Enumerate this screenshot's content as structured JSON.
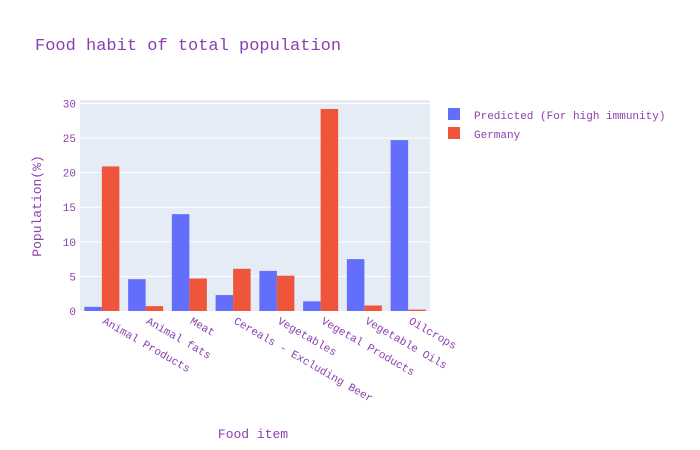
{
  "chart_data": {
    "type": "bar",
    "title": "Food habit of total population",
    "xlabel": "Food item",
    "ylabel": "Population(%)",
    "ylim": [
      0,
      30.5
    ],
    "yticks": [
      0,
      5,
      10,
      15,
      20,
      25,
      30
    ],
    "grid": true,
    "legend_position": "top-right",
    "categories": [
      "Animal Products",
      "Animal fats",
      "Meat",
      "Cereals - Excluding Beer",
      "Vegetables",
      "Vegetal Products",
      "Vegetable Oils",
      "Oilcrops"
    ],
    "series": [
      {
        "name": "Predicted (For high immunity)",
        "color": "#636efa",
        "values": [
          0.6,
          4.6,
          14.0,
          2.3,
          5.8,
          1.4,
          7.5,
          24.7
        ]
      },
      {
        "name": "Germany",
        "color": "#ef553b",
        "values": [
          20.9,
          0.7,
          4.7,
          6.1,
          5.1,
          29.2,
          0.8,
          0.2
        ]
      }
    ],
    "colors": {
      "plot_background": "#e5ecf6",
      "gridline": "#ffffff",
      "text": "#8b3fb0"
    }
  }
}
